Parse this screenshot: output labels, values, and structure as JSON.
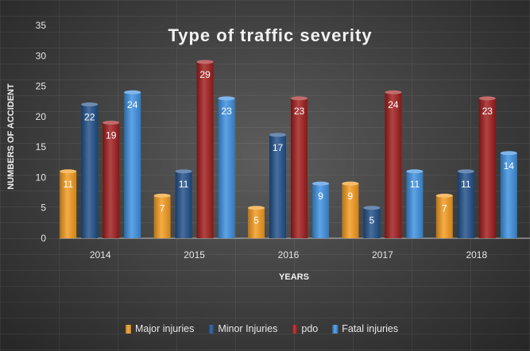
{
  "chart_data": {
    "type": "bar",
    "title": "Type of traffic severity",
    "xlabel": "YEARS",
    "ylabel": "NUMBERS OF ACCIDENT",
    "categories": [
      "2014",
      "2015",
      "2016",
      "2017",
      "2018"
    ],
    "ylim": [
      0,
      35
    ],
    "yticks": [
      0,
      5,
      10,
      15,
      20,
      25,
      30,
      35
    ],
    "grid": false,
    "legend_position": "bottom",
    "series": [
      {
        "name": "Major injuries",
        "values": [
          11,
          7,
          5,
          9,
          7
        ],
        "color": "#f39a1c"
      },
      {
        "name": "Minor Injuries",
        "values": [
          22,
          11,
          17,
          5,
          11
        ],
        "color": "#1f4e88"
      },
      {
        "name": "pdo",
        "values": [
          19,
          29,
          23,
          24,
          23
        ],
        "color": "#a01b1b"
      },
      {
        "name": "Fatal injuries",
        "values": [
          24,
          23,
          9,
          11,
          14
        ],
        "color": "#3b8fe0"
      }
    ]
  }
}
